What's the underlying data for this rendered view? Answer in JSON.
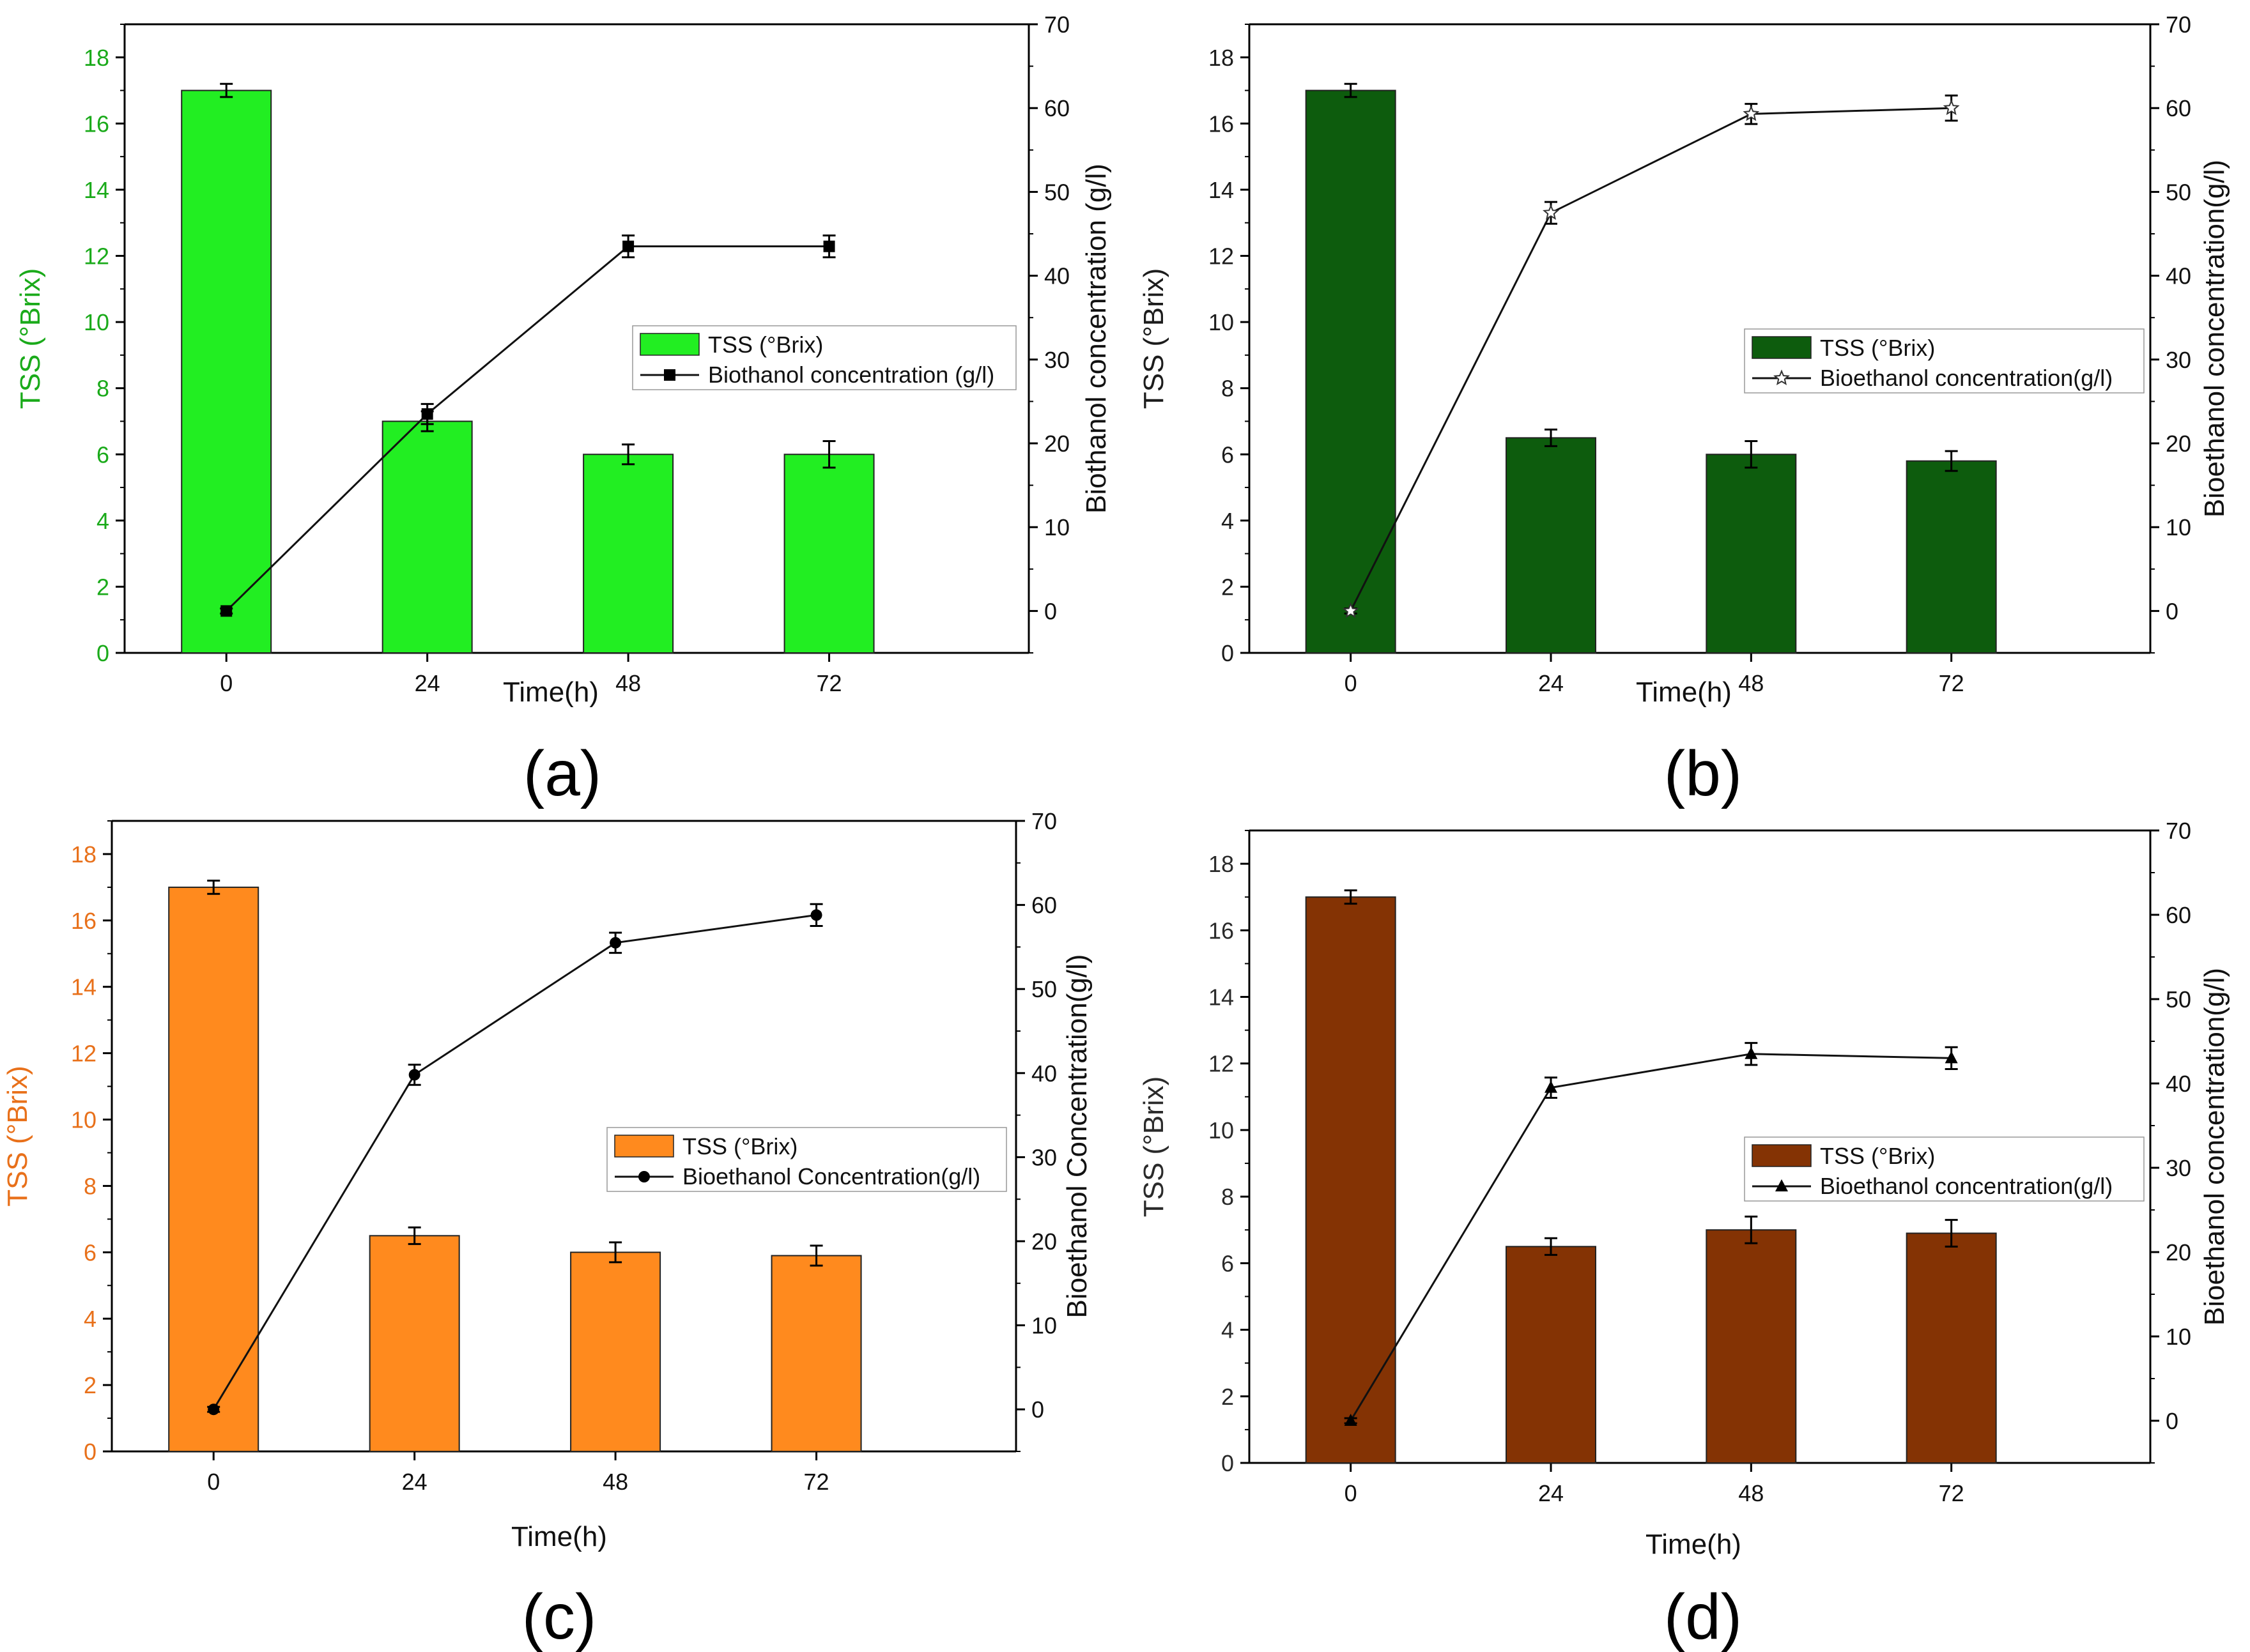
{
  "chart_data": [
    {
      "panel_label": "(a)",
      "type": "bar+line",
      "bar_color": "#22EE22",
      "left_axis_color": "#1AAA1A",
      "line_marker": "square",
      "x": {
        "label": "Time(h)",
        "categories": [
          "0",
          "24",
          "48",
          "72"
        ]
      },
      "y_left": {
        "label": "TSS (°Brix)",
        "ylim": [
          0,
          19
        ],
        "ticks": [
          0,
          2,
          4,
          6,
          8,
          10,
          12,
          14,
          16,
          18
        ]
      },
      "y_right": {
        "label": "Biothanol concentration (g/l)",
        "ylim": [
          -5,
          70
        ],
        "ticks": [
          0,
          10,
          20,
          30,
          40,
          50,
          60,
          70
        ]
      },
      "series": [
        {
          "name": "TSS (°Brix)",
          "axis": "left",
          "kind": "bar",
          "values": [
            17.0,
            7.0,
            6.0,
            6.0
          ],
          "errors": [
            0.2,
            0.3,
            0.3,
            0.4
          ]
        },
        {
          "name": "Biothanol concentration (g/l)",
          "axis": "right",
          "kind": "line",
          "values": [
            0.0,
            23.5,
            43.5,
            43.5
          ],
          "errors": [
            0.3,
            1.2,
            1.3,
            1.3
          ]
        }
      ]
    },
    {
      "panel_label": "(b)",
      "type": "bar+line",
      "bar_color": "#0D5C0D",
      "left_axis_color": "#1C1C1C",
      "line_marker": "star",
      "x": {
        "label": "Time(h)",
        "categories": [
          "0",
          "24",
          "48",
          "72"
        ]
      },
      "y_left": {
        "label": "TSS (°Brix)",
        "ylim": [
          0,
          19
        ],
        "ticks": [
          0,
          2,
          4,
          6,
          8,
          10,
          12,
          14,
          16,
          18
        ]
      },
      "y_right": {
        "label": "Bioethanol concentration(g/l)",
        "ylim": [
          -5,
          70
        ],
        "ticks": [
          0,
          10,
          20,
          30,
          40,
          50,
          60,
          70
        ]
      },
      "series": [
        {
          "name": "TSS (°Brix)",
          "axis": "left",
          "kind": "bar",
          "values": [
            17.0,
            6.5,
            6.0,
            5.8
          ],
          "errors": [
            0.2,
            0.25,
            0.4,
            0.3
          ]
        },
        {
          "name": "Bioethanol concentration(g/l)",
          "axis": "right",
          "kind": "line",
          "values": [
            0.0,
            47.5,
            59.3,
            60.0
          ],
          "errors": [
            0.3,
            1.3,
            1.2,
            1.5
          ]
        }
      ]
    },
    {
      "panel_label": "(c)",
      "type": "bar+line",
      "bar_color": "#FF8A1E",
      "left_axis_color": "#E8701A",
      "line_marker": "circle",
      "x": {
        "label": "Time(h)",
        "categories": [
          "0",
          "24",
          "48",
          "72"
        ]
      },
      "y_left": {
        "label": "TSS (°Brix)",
        "ylim": [
          0,
          19
        ],
        "ticks": [
          0,
          2,
          4,
          6,
          8,
          10,
          12,
          14,
          16,
          18
        ]
      },
      "y_right": {
        "label": "Bioethanol Concentration(g/l)",
        "ylim": [
          -5,
          70
        ],
        "ticks": [
          0,
          10,
          20,
          30,
          40,
          50,
          60,
          70
        ]
      },
      "series": [
        {
          "name": "TSS (°Brix)",
          "axis": "left",
          "kind": "bar",
          "values": [
            17.0,
            6.5,
            6.0,
            5.9
          ],
          "errors": [
            0.2,
            0.25,
            0.3,
            0.3
          ]
        },
        {
          "name": "Bioethanol Concentration(g/l)",
          "axis": "right",
          "kind": "line",
          "values": [
            0.0,
            39.8,
            55.5,
            58.8
          ],
          "errors": [
            0.3,
            1.2,
            1.2,
            1.3
          ]
        }
      ]
    },
    {
      "panel_label": "(d)",
      "type": "bar+line",
      "bar_color": "#843304",
      "left_axis_color": "#2A2A2A",
      "line_marker": "triangle",
      "x": {
        "label": "Time(h)",
        "categories": [
          "0",
          "24",
          "48",
          "72"
        ]
      },
      "y_left": {
        "label": "TSS (°Brix)",
        "ylim": [
          0,
          19
        ],
        "ticks": [
          0,
          2,
          4,
          6,
          8,
          10,
          12,
          14,
          16,
          18
        ]
      },
      "y_right": {
        "label": "Bioethanol concentration(g/l)",
        "ylim": [
          -5,
          70
        ],
        "ticks": [
          0,
          10,
          20,
          30,
          40,
          50,
          60,
          70
        ]
      },
      "series": [
        {
          "name": "TSS (°Brix)",
          "axis": "left",
          "kind": "bar",
          "values": [
            17.0,
            6.5,
            7.0,
            6.9
          ],
          "errors": [
            0.2,
            0.25,
            0.4,
            0.4
          ]
        },
        {
          "name": "Bioethanol concentration(g/l)",
          "axis": "right",
          "kind": "line",
          "values": [
            0.0,
            39.5,
            43.5,
            43.0
          ],
          "errors": [
            0.3,
            1.2,
            1.3,
            1.3
          ]
        }
      ]
    }
  ]
}
